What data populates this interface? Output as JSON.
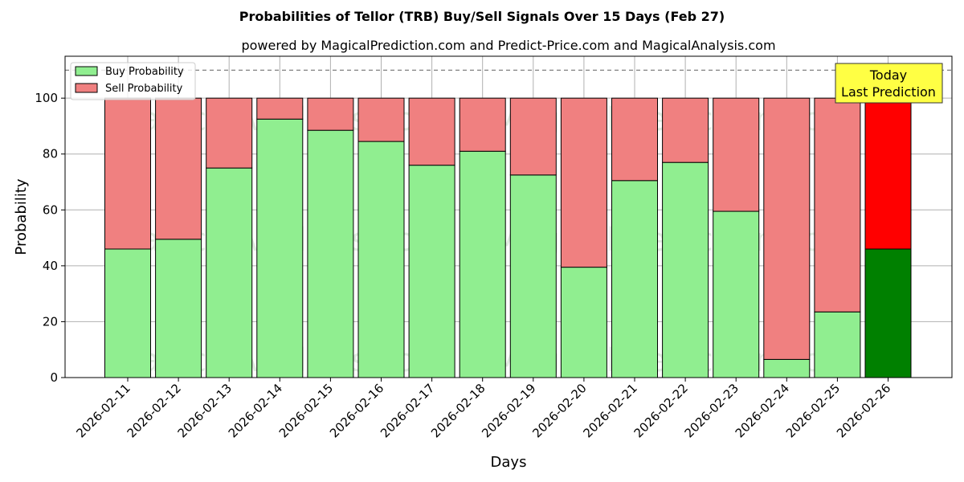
{
  "title": "Probabilities of Tellor (TRB) Buy/Sell Signals Over 15 Days (Feb 27)",
  "subtitle": "powered by MagicalPrediction.com and Predict-Price.com and MagicalAnalysis.com",
  "watermarks": [
    "MagicalAnalysis.com",
    "MagicalPrediction.com"
  ],
  "colors": {
    "buy": "#90EE90",
    "sell": "#F08080",
    "buy_highlight": "#008000",
    "sell_highlight": "#FF0000",
    "annotation_bg": "#FFFF44"
  },
  "chart_data": {
    "type": "bar",
    "stacked": true,
    "xlabel": "Days",
    "ylabel": "Probability",
    "ylim": [
      0,
      115
    ],
    "yticks": [
      0,
      20,
      40,
      60,
      80,
      100
    ],
    "reference_line": 110,
    "grid": true,
    "legend_position": "top-left",
    "categories": [
      "2026-02-11",
      "2026-02-12",
      "2026-02-13",
      "2026-02-14",
      "2026-02-15",
      "2026-02-16",
      "2026-02-17",
      "2026-02-18",
      "2026-02-19",
      "2026-02-20",
      "2026-02-21",
      "2026-02-22",
      "2026-02-23",
      "2026-02-24",
      "2026-02-25",
      "2026-02-26"
    ],
    "series": [
      {
        "name": "Buy Probability",
        "values": [
          46,
          49.5,
          75,
          92.5,
          88.5,
          84.5,
          76,
          81,
          72.5,
          39.5,
          70.5,
          77,
          59.5,
          6.5,
          23.5,
          46
        ]
      },
      {
        "name": "Sell Probability",
        "values": [
          54,
          50.5,
          25,
          7.5,
          11.5,
          15.5,
          24,
          19,
          27.5,
          60.5,
          29.5,
          23,
          40.5,
          93.5,
          76.5,
          54
        ]
      }
    ],
    "annotation": {
      "lines": [
        "Today",
        "Last Prediction"
      ],
      "category": "2026-02-26"
    }
  }
}
